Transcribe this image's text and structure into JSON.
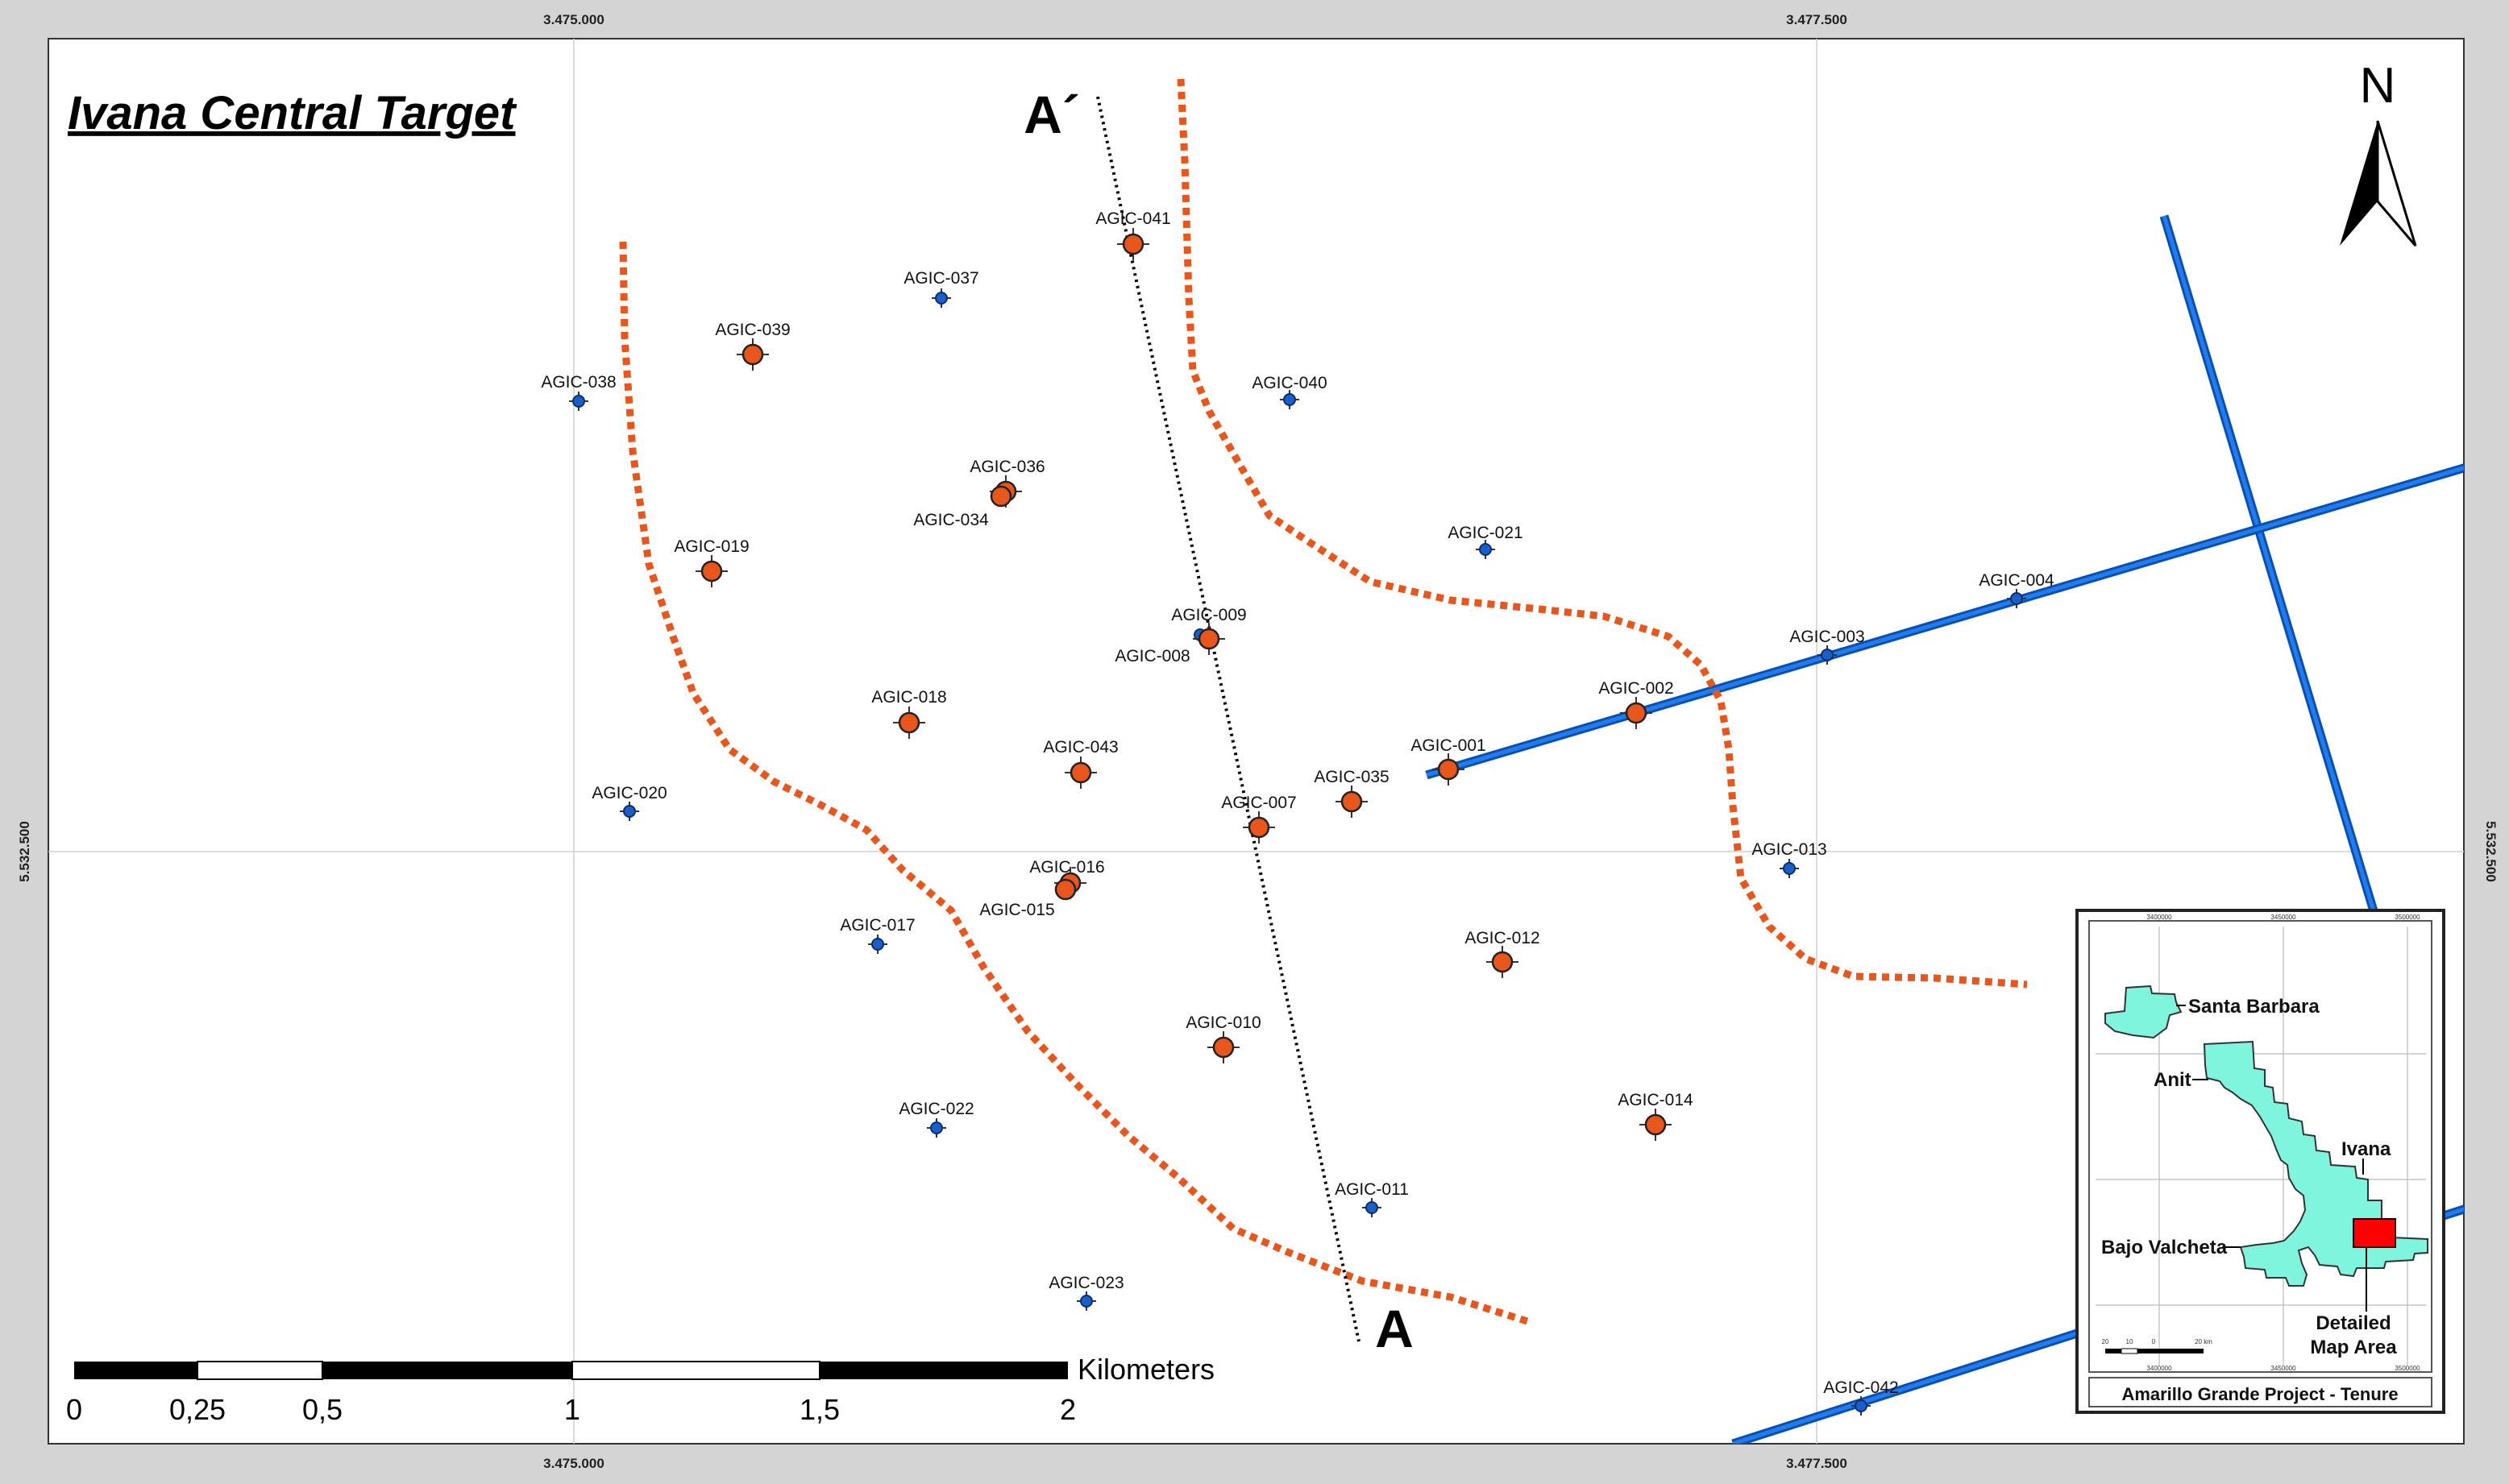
{
  "title": "Ivana Central Target",
  "north_label": "N",
  "coordinates": {
    "x_left": "3.475.000",
    "x_right": "3.477.500",
    "y_mid": "5.532.500"
  },
  "section_line": {
    "start_label": "A´",
    "end_label": "A"
  },
  "drill_holes": [
    {
      "id": "AGIC-041",
      "type": "orange"
    },
    {
      "id": "AGIC-037",
      "type": "blue"
    },
    {
      "id": "AGIC-039",
      "type": "orange"
    },
    {
      "id": "AGIC-038",
      "type": "blue"
    },
    {
      "id": "AGIC-040",
      "type": "blue"
    },
    {
      "id": "AGIC-036",
      "type": "orange"
    },
    {
      "id": "AGIC-034",
      "type": "orange"
    },
    {
      "id": "AGIC-021",
      "type": "blue"
    },
    {
      "id": "AGIC-019",
      "type": "orange"
    },
    {
      "id": "AGIC-009",
      "type": "orange"
    },
    {
      "id": "AGIC-008",
      "type": "blue"
    },
    {
      "id": "AGIC-004",
      "type": "blue"
    },
    {
      "id": "AGIC-003",
      "type": "blue"
    },
    {
      "id": "AGIC-018",
      "type": "orange"
    },
    {
      "id": "AGIC-002",
      "type": "orange"
    },
    {
      "id": "AGIC-043",
      "type": "orange"
    },
    {
      "id": "AGIC-001",
      "type": "orange"
    },
    {
      "id": "AGIC-035",
      "type": "orange"
    },
    {
      "id": "AGIC-007",
      "type": "orange"
    },
    {
      "id": "AGIC-020",
      "type": "blue"
    },
    {
      "id": "AGIC-013",
      "type": "blue"
    },
    {
      "id": "AGIC-016",
      "type": "orange"
    },
    {
      "id": "AGIC-015",
      "type": "orange"
    },
    {
      "id": "AGIC-017",
      "type": "blue"
    },
    {
      "id": "AGIC-012",
      "type": "orange"
    },
    {
      "id": "AGIC-010",
      "type": "orange"
    },
    {
      "id": "AGIC-014",
      "type": "orange"
    },
    {
      "id": "AGIC-022",
      "type": "blue"
    },
    {
      "id": "AGIC-011",
      "type": "blue"
    },
    {
      "id": "AGIC-023",
      "type": "blue"
    },
    {
      "id": "AGIC-042",
      "type": "blue"
    }
  ],
  "scale_bar": {
    "unit": "Kilometers",
    "labels": [
      "0",
      "0,25",
      "0,5",
      "1",
      "1,5",
      "2"
    ]
  },
  "inset": {
    "caption": "Amarillo Grande Project - Tenure",
    "areas": [
      "Santa Barbara",
      "Anit",
      "Ivana",
      "Bajo Valcheta"
    ],
    "detail_label_1": "Detailed",
    "detail_label_2": "Map Area",
    "scale_labels": [
      "20",
      "10",
      "0",
      "20 km"
    ],
    "tick_top": [
      "3400000",
      "3450000",
      "3500000"
    ],
    "tick_bottom": [
      "3400000",
      "3450000",
      "3500000"
    ]
  },
  "colors": {
    "orange_hole": "#e8561c",
    "blue_hole": "#1a5fc8",
    "dashed_boundary": "#e8561c",
    "structure_line": "#1568d8",
    "tenure_fill": "#7ff5de",
    "detail_box": "#ff0000",
    "frame_gray": "#d4d4d4"
  },
  "legend_icons": [
    "north-arrow-icon"
  ]
}
